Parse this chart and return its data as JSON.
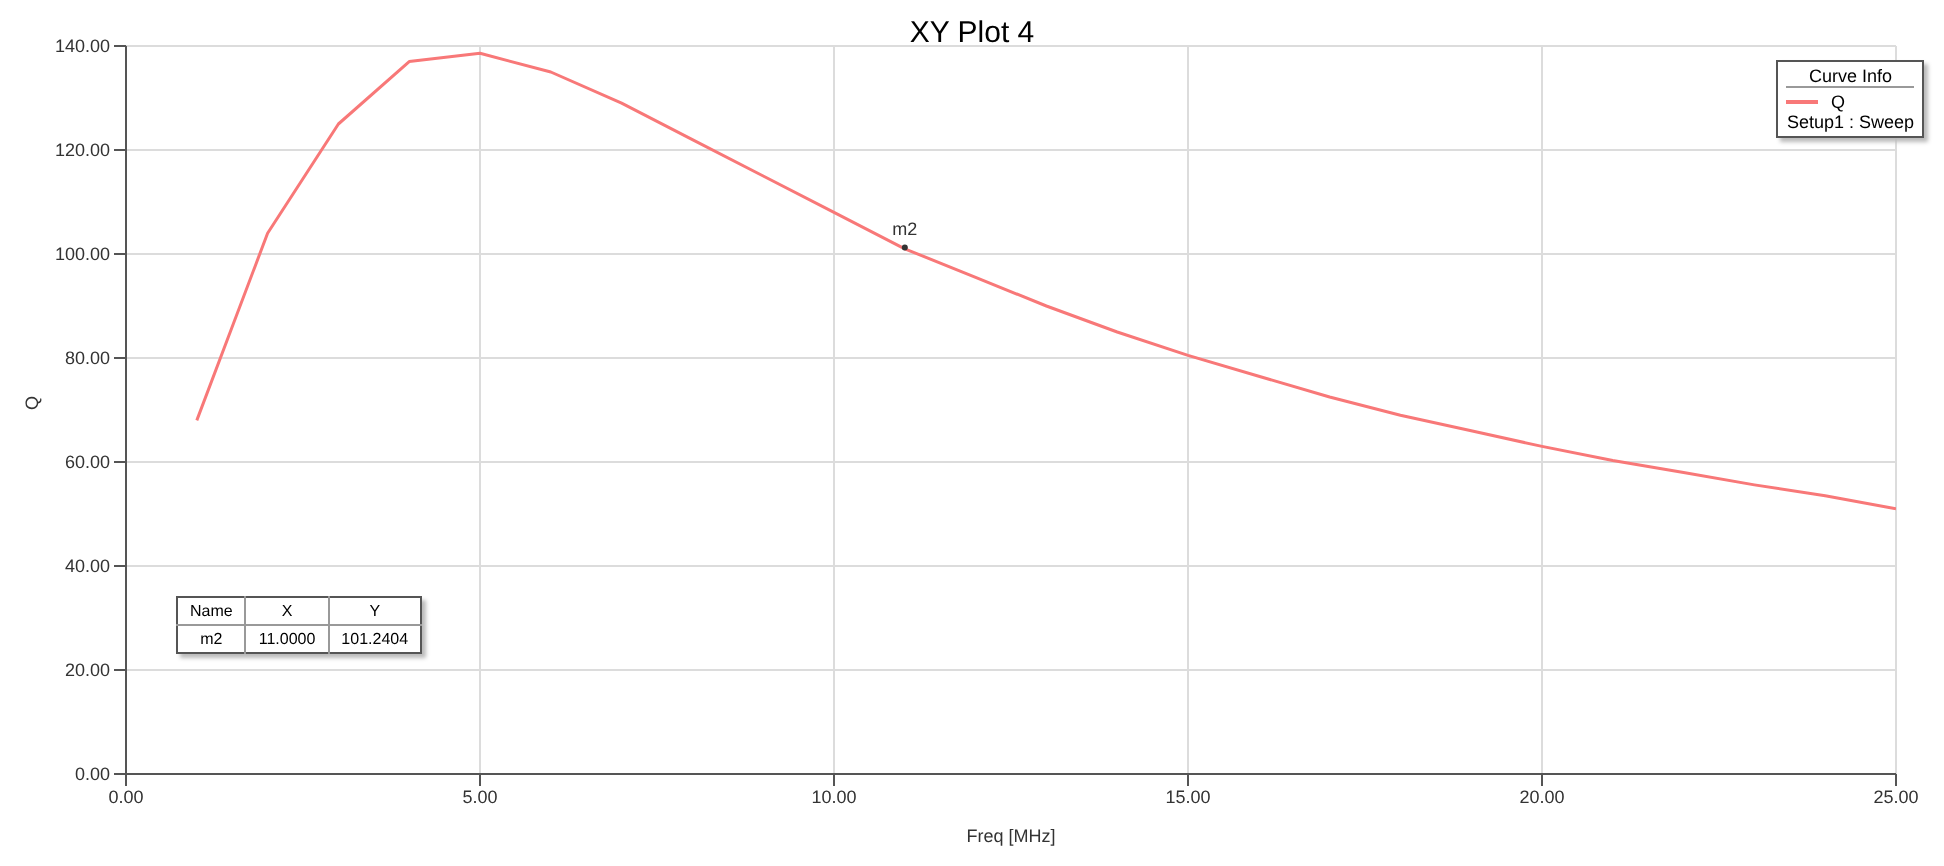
{
  "chart_data": {
    "type": "line",
    "title": "XY Plot 4",
    "xlabel": "Freq [MHz]",
    "ylabel": "Q",
    "legend_title": "Curve Info",
    "x": [
      1,
      2,
      3,
      4,
      5,
      6,
      7,
      8,
      9,
      10,
      11,
      12,
      13,
      14,
      15,
      16,
      17,
      18,
      19,
      20,
      21,
      22,
      23,
      24,
      25
    ],
    "series": [
      {
        "name": "Q",
        "color": "#f87878",
        "values": [
          68,
          104,
          125,
          137,
          138.6,
          135,
          129,
          122,
          115,
          108,
          101,
          95.5,
          90,
          85,
          80.5,
          76.5,
          72.5,
          69,
          66,
          63,
          60.3,
          58,
          55.6,
          53.5,
          51
        ]
      }
    ],
    "xlim": [
      0,
      25
    ],
    "xticks": [
      {
        "value": 0,
        "label": "0.00"
      },
      {
        "value": 5,
        "label": "5.00"
      },
      {
        "value": 10,
        "label": "10.00"
      },
      {
        "value": 15,
        "label": "15.00"
      },
      {
        "value": 20,
        "label": "20.00"
      },
      {
        "value": 25,
        "label": "25.00"
      }
    ],
    "ylim": [
      0,
      140
    ],
    "yticks": [
      {
        "value": 0,
        "label": "0.00"
      },
      {
        "value": 20,
        "label": "20.00"
      },
      {
        "value": 40,
        "label": "40.00"
      },
      {
        "value": 60,
        "label": "60.00"
      },
      {
        "value": 80,
        "label": "80.00"
      },
      {
        "value": 100,
        "label": "100.00"
      },
      {
        "value": 120,
        "label": "120.00"
      },
      {
        "value": 140,
        "label": "140.00"
      }
    ],
    "grid": true,
    "legend": "top right",
    "marker": "none",
    "line_style": "solid",
    "annotations": [
      {
        "text": "m2",
        "x": 11,
        "y": 101.2404
      },
      "Name",
      "X",
      "Y",
      "m2",
      "11.0000",
      "101.2404",
      "Setup1 : Sweep"
    ]
  }
}
